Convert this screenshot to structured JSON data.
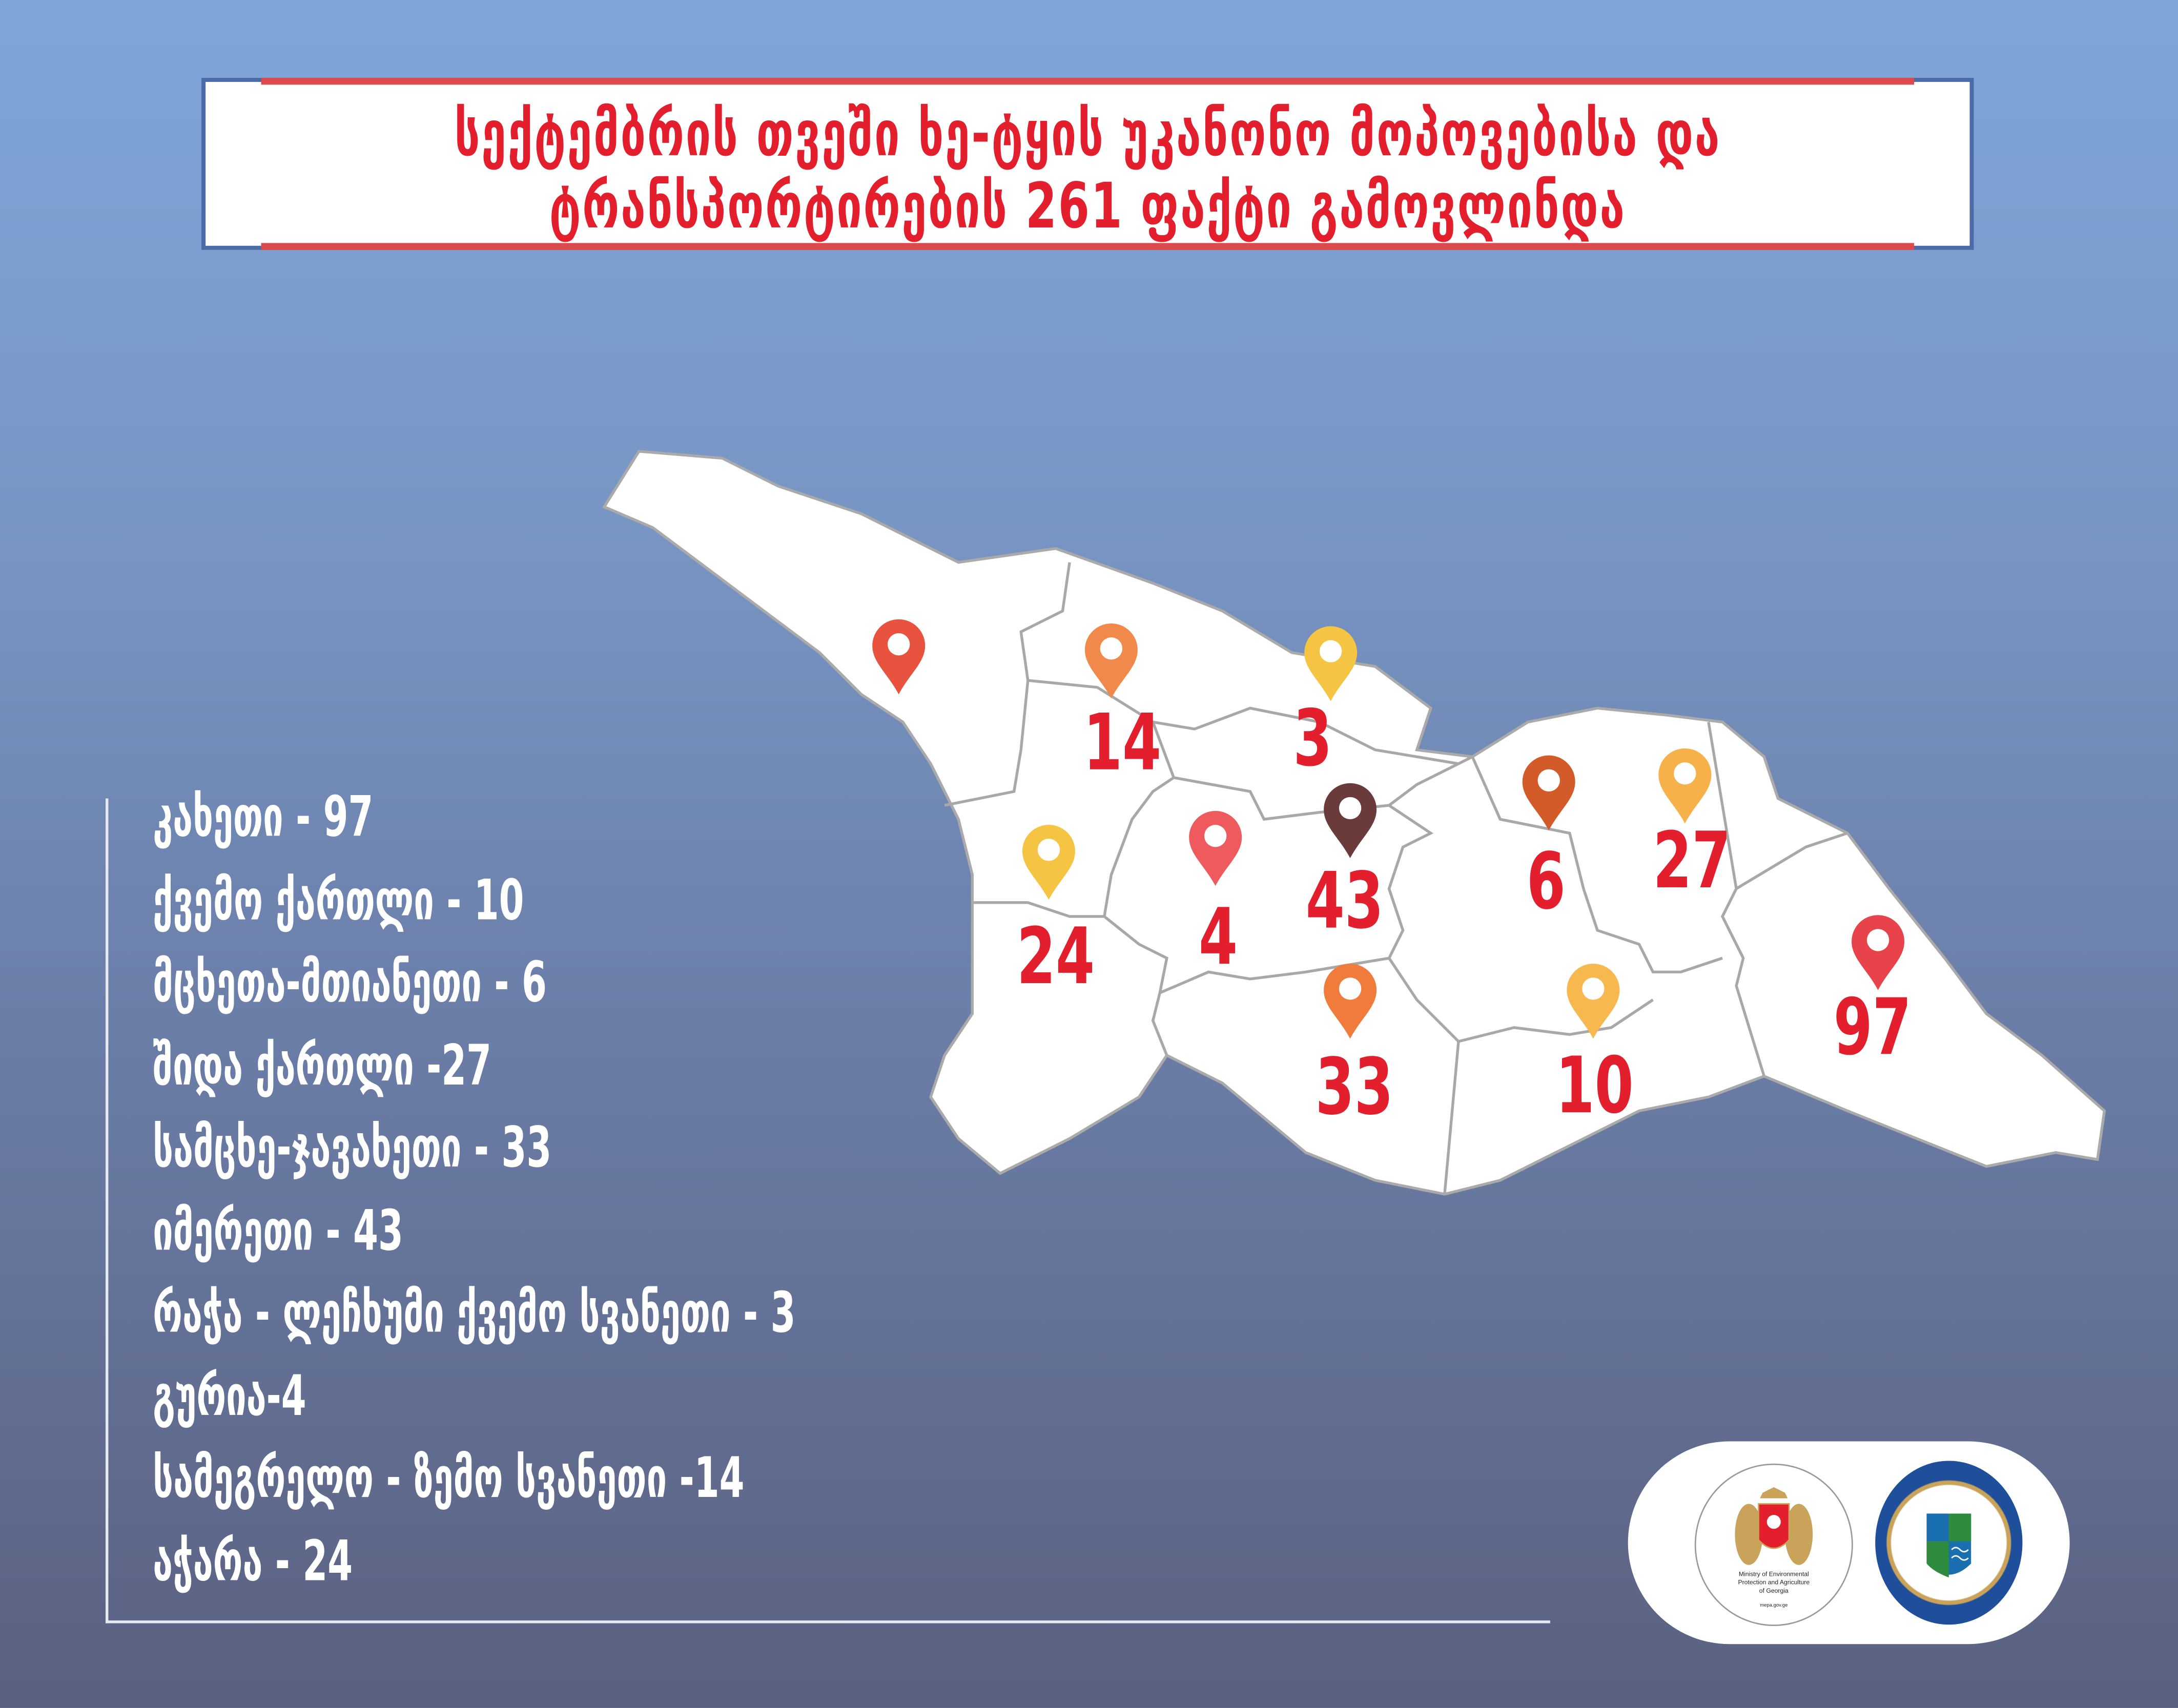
{
  "title": {
    "line1": "სექტემბრის თვეში ხე-ტყის უკანონო მოპოვებისა და",
    "line2": "ტრანსპორტირების 261 ფაქტი გამოვლინდა"
  },
  "regions": [
    {
      "label": "კახეთი -  97"
    },
    {
      "label": "ქვემო ქართლი - 10"
    },
    {
      "label": "მცხეთა-მთიანეთი - 6"
    },
    {
      "label": "შიდა ქართლი -27"
    },
    {
      "label": "სამცხე-ჯავახეთი - 33"
    },
    {
      "label": "იმერეთი - 43"
    },
    {
      "label": "რაჭა - ლეჩხუმი ქვემო სვანეთი - 3"
    },
    {
      "label": "გურია-4"
    },
    {
      "label": "სამეგრელო - ზემო სვანეთი -14"
    },
    {
      "label": "აჭარა - 24"
    }
  ],
  "markers": [
    {
      "value": null,
      "color": "#e8533f"
    },
    {
      "value": "14",
      "color": "#f0894a"
    },
    {
      "value": "3",
      "color": "#f6c443"
    },
    {
      "value": "43",
      "color": "#6b3a3a"
    },
    {
      "value": "4",
      "color": "#ef5a5f"
    },
    {
      "value": "24",
      "color": "#f6c443"
    },
    {
      "value": "6",
      "color": "#d35b2a"
    },
    {
      "value": "27",
      "color": "#f7b14a"
    },
    {
      "value": "33",
      "color": "#f07b3a"
    },
    {
      "value": "10",
      "color": "#f7b84f"
    },
    {
      "value": "97",
      "color": "#e8434a"
    }
  ],
  "logos": {
    "ministry_en_1": "Ministry of Environmental",
    "ministry_en_2": "Protection and Agriculture",
    "ministry_en_3": "of Georgia",
    "ministry_url": "mepa.gov.ge"
  },
  "colors": {
    "accent": "#e41f2d",
    "frame": "#4a6aa8"
  }
}
